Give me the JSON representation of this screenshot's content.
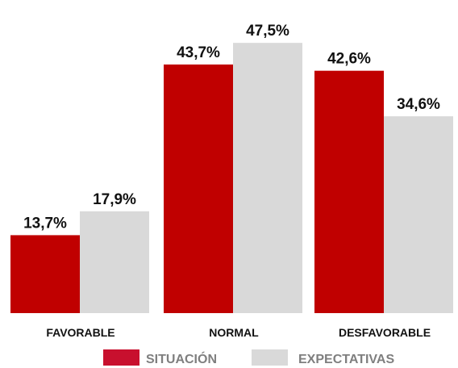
{
  "chart_data": {
    "type": "bar",
    "categories": [
      "FAVORABLE",
      "NORMAL",
      "DESFAVORABLE"
    ],
    "series": [
      {
        "name": "SITUACIÓN",
        "values": [
          13.7,
          43.7,
          42.6
        ],
        "labels": [
          "13,7%",
          "43,7%",
          "42,6%"
        ],
        "color": "#c00000"
      },
      {
        "name": "EXPECTATIVAS",
        "values": [
          17.9,
          47.5,
          34.6
        ],
        "labels": [
          "17,9%",
          "47,5%",
          "34,6%"
        ],
        "color": "#d9d9d9"
      }
    ],
    "legend_colors": [
      "#c8102e",
      "#d9d9d9"
    ],
    "ylim": [
      0,
      50
    ],
    "grid": false,
    "legend": "bottom",
    "title": "",
    "xlabel": "",
    "ylabel": ""
  }
}
